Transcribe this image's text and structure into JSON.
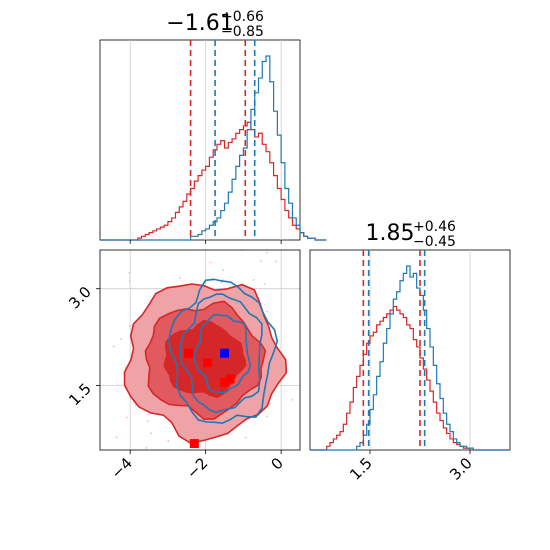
{
  "chart_data": {
    "type": "corner",
    "colors": {
      "series_a": "#1f77b4",
      "series_b": "#d62728",
      "marker_a": "#0000ff",
      "marker_b": "#ff0000",
      "grid": "#cccccc"
    },
    "panels": {
      "hist_x": {
        "title": {
          "median": "−1.61",
          "plus": "+0.66",
          "minus": "−0.85"
        },
        "xlim": [
          -4.8,
          0.5
        ],
        "quantiles_a": [
          -1.75,
          -0.7
        ],
        "quantiles_b": [
          -2.4,
          -0.95
        ],
        "hist_a": {
          "start": -4.8,
          "step": 0.1,
          "counts": [
            0,
            0,
            0,
            0,
            0,
            0,
            0,
            0,
            0,
            0,
            0,
            0,
            0,
            0,
            0,
            0,
            0,
            0,
            0,
            0,
            0,
            0,
            0,
            0,
            2,
            2,
            3,
            5,
            6,
            8,
            10,
            12,
            16,
            20,
            26,
            33,
            40,
            46,
            50,
            60,
            71,
            80,
            88,
            97,
            100,
            86,
            70,
            57,
            42,
            28,
            20,
            12,
            8,
            4,
            2,
            1,
            1,
            0,
            0,
            0
          ]
        },
        "hist_b": {
          "start": -4.8,
          "step": 0.1,
          "counts": [
            0,
            0,
            0,
            0,
            0,
            0,
            0,
            0,
            0,
            0,
            1,
            2,
            3,
            4,
            5,
            6,
            7,
            8,
            10,
            12,
            15,
            18,
            21,
            25,
            28,
            32,
            35,
            38,
            40,
            45,
            49,
            52,
            54,
            50,
            53,
            55,
            58,
            60,
            62,
            64,
            60,
            56,
            58,
            52,
            48,
            42,
            35,
            28,
            22,
            16,
            12,
            8,
            6,
            4,
            2,
            1,
            1,
            0,
            0,
            0
          ]
        }
      },
      "hist_y": {
        "title": {
          "median": "1.85",
          "plus": "+0.46",
          "minus": "−0.45"
        },
        "xlim": [
          0.6,
          3.6
        ],
        "ticks": [
          1.5,
          3.0
        ],
        "tick_labels": [
          "1.5",
          "3.0"
        ],
        "quantiles_a": [
          1.48,
          2.32
        ],
        "quantiles_b": [
          1.4,
          2.25
        ],
        "hist_a": {
          "start": 0.6,
          "step": 0.05,
          "counts": [
            0,
            0,
            0,
            0,
            0,
            0,
            0,
            0,
            0,
            0,
            0,
            0,
            0,
            0,
            2,
            4,
            8,
            14,
            22,
            30,
            40,
            48,
            58,
            66,
            74,
            82,
            86,
            92,
            96,
            100,
            94,
            96,
            88,
            84,
            76,
            66,
            56,
            46,
            36,
            28,
            20,
            14,
            10,
            6,
            4,
            2,
            2,
            1,
            1,
            0,
            0,
            0,
            0,
            0,
            0,
            0,
            0,
            0,
            0,
            0
          ]
        },
        "hist_b": {
          "start": 0.6,
          "step": 0.05,
          "counts": [
            0,
            0,
            0,
            0,
            0,
            2,
            4,
            6,
            8,
            10,
            14,
            20,
            26,
            34,
            40,
            46,
            52,
            58,
            62,
            64,
            68,
            70,
            72,
            74,
            76,
            78,
            76,
            74,
            72,
            68,
            66,
            60,
            56,
            50,
            44,
            38,
            32,
            26,
            20,
            16,
            12,
            9,
            6,
            4,
            3,
            2,
            1,
            1,
            0,
            0,
            0,
            0,
            0,
            0,
            0,
            0,
            0,
            0,
            0,
            0
          ]
        }
      },
      "joint": {
        "xlim": [
          -4.8,
          0.5
        ],
        "ylim": [
          0.5,
          3.6
        ],
        "xticks": [
          -4,
          -2,
          0
        ],
        "xtick_labels": [
          "−4",
          "−2",
          "0"
        ],
        "yticks": [
          1.5,
          3.0
        ],
        "ytick_labels": [
          "1.5",
          "3.0"
        ],
        "ellipse_a": {
          "cx": -1.55,
          "cy": 2.0,
          "rx": [
            0.7,
            1.05,
            1.35
          ],
          "ry": [
            0.6,
            0.9,
            1.1
          ]
        },
        "ellipse_b": {
          "cx": -2.05,
          "cy": 1.9,
          "rx": [
            1.05,
            1.55,
            2.05
          ],
          "ry": [
            0.55,
            0.85,
            1.2
          ]
        },
        "markers_b": [
          [
            -2.45,
            2.0
          ],
          [
            -1.95,
            1.85
          ],
          [
            -1.5,
            1.55
          ],
          [
            -1.35,
            1.6
          ],
          [
            -2.3,
            0.6
          ]
        ],
        "markers_a": [
          [
            -1.5,
            2.0
          ]
        ]
      }
    }
  }
}
